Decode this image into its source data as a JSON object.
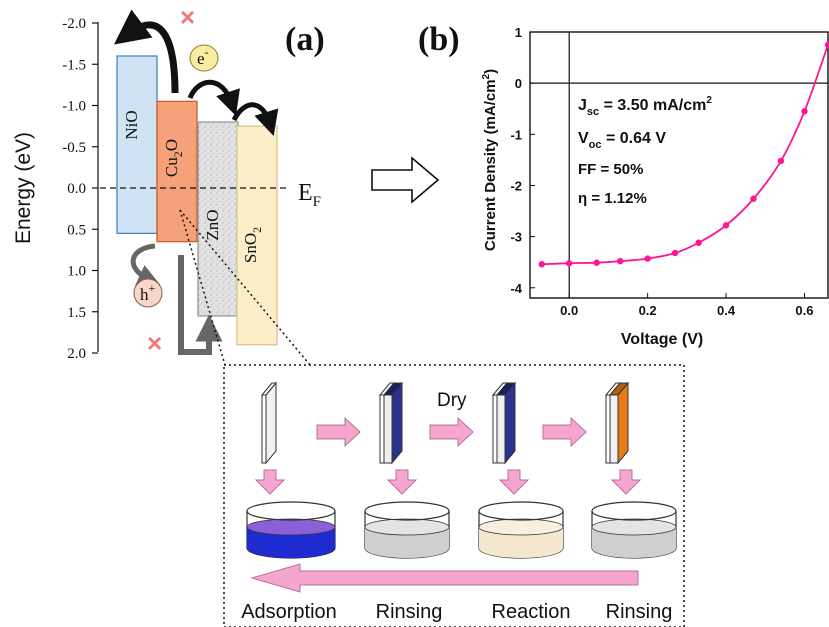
{
  "panel_a": {
    "label": "(a)",
    "axis_label": "Energy (eV)",
    "y_ticks": [
      "-2.0",
      "-1.5",
      "-1.0",
      "-0.5",
      "0.0",
      "0.5",
      "1.0",
      "1.5",
      "2.0"
    ],
    "layers": [
      {
        "name": "NiO",
        "top_eV": -1.6,
        "bottom_eV": 0.55,
        "fill": "#cfe3f4",
        "stroke": "#4a86c0"
      },
      {
        "name_main": "Cu",
        "name_sub": "2",
        "name_end": "O",
        "top_eV": -1.05,
        "bottom_eV": 0.65,
        "fill": "#f5a27a",
        "stroke": "#d35a26"
      },
      {
        "name_main": "ZnO",
        "top_eV": -0.8,
        "bottom_eV": 1.55,
        "fill": "#e4e4e4",
        "stroke": "#999999"
      },
      {
        "name_main": "SnO",
        "name_sub": "2",
        "top_eV": -0.75,
        "bottom_eV": 1.9,
        "fill": "#fbeec9",
        "stroke": "#d9c48a"
      }
    ],
    "fermi_label_main": "E",
    "fermi_label_sub": "F",
    "electron_main": "e",
    "electron_sup": "-",
    "hole_main": "h",
    "hole_sup": "+",
    "blocked_marker": "×",
    "colors": {
      "electron_bubble": "#f7eca0",
      "hole_bubble": "#f7d8c8",
      "cross": "#ee7a78",
      "arrow_dark": "#111111",
      "arrow_grey": "#666666"
    }
  },
  "panel_b": {
    "label": "(b)",
    "chart_data": {
      "type": "line",
      "xlabel": "Voltage (V)",
      "ylabel_main": "Current Density (mA/cm",
      "ylabel_sup": "2",
      "ylabel_end": ")",
      "xlim": [
        -0.1,
        0.66
      ],
      "ylim": [
        -4.2,
        1.0
      ],
      "x_ticks": [
        "0.0",
        "0.2",
        "0.4",
        "0.6"
      ],
      "y_ticks": [
        "1",
        "0",
        "-1",
        "-2",
        "-3",
        "-4"
      ],
      "series": [
        {
          "color": "#ff1493",
          "x": [
            -0.07,
            0.0,
            0.07,
            0.13,
            0.2,
            0.27,
            0.33,
            0.4,
            0.47,
            0.54,
            0.6,
            0.66
          ],
          "y": [
            -3.54,
            -3.52,
            -3.51,
            -3.48,
            -3.43,
            -3.32,
            -3.12,
            -2.78,
            -2.26,
            -1.52,
            -0.55,
            0.75
          ]
        }
      ],
      "annotations": [
        {
          "main": "J",
          "sub": "sc",
          "end": " = 3.50 mA/cm",
          "sup": "2"
        },
        {
          "main": "V",
          "sub": "oc",
          "end": "  = 0.64 V"
        },
        {
          "main": "FF = 50%"
        },
        {
          "main": "η = 1.12%"
        }
      ]
    }
  },
  "process": {
    "dry_label": "Dry",
    "steps": [
      "Adsorption",
      "Rinsing",
      "Reaction",
      "Rinsing"
    ],
    "colors": {
      "arrow_pink": "#f4a6cf",
      "arrow_pink_stroke": "#b8709b",
      "film_dark_blue": "#2c318f",
      "film_orange": "#e57d14",
      "liquid_blue": "#1d2bd0",
      "liquid_grey": "#cfcfcf",
      "liquid_cream": "#f5e6cf"
    }
  }
}
